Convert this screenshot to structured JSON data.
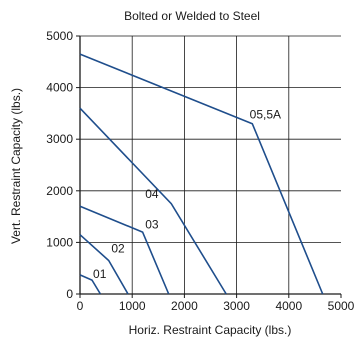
{
  "chart_data": {
    "type": "line",
    "title": "Bolted or Welded to Steel",
    "xlabel": "Horiz. Restraint Capacity (lbs.)",
    "ylabel": "Vert. Restraint Capacity (lbs.)",
    "xlim": [
      0,
      5000
    ],
    "ylim": [
      0,
      5000
    ],
    "xticks": [
      0,
      1000,
      2000,
      3000,
      4000,
      5000
    ],
    "yticks": [
      0,
      1000,
      2000,
      3000,
      4000,
      5000
    ],
    "grid": true,
    "line_color": "#1f4e8c",
    "series": [
      {
        "name": "01",
        "points": [
          [
            0,
            370
          ],
          [
            230,
            270
          ],
          [
            390,
            0
          ]
        ],
        "label_at": [
          250,
          310
        ]
      },
      {
        "name": "02",
        "points": [
          [
            0,
            1150
          ],
          [
            550,
            650
          ],
          [
            920,
            0
          ]
        ],
        "label_at": [
          600,
          800
        ]
      },
      {
        "name": "03",
        "points": [
          [
            0,
            1700
          ],
          [
            1200,
            1200
          ],
          [
            1700,
            0
          ]
        ],
        "label_at": [
          1250,
          1270
        ]
      },
      {
        "name": "04",
        "points": [
          [
            0,
            3600
          ],
          [
            1750,
            1750
          ],
          [
            2800,
            0
          ]
        ],
        "label_at": [
          1250,
          1860
        ]
      },
      {
        "name": "05,5A",
        "points": [
          [
            0,
            4650
          ],
          [
            3300,
            3300
          ],
          [
            4650,
            0
          ]
        ],
        "label_at": [
          3250,
          3400
        ]
      }
    ]
  }
}
